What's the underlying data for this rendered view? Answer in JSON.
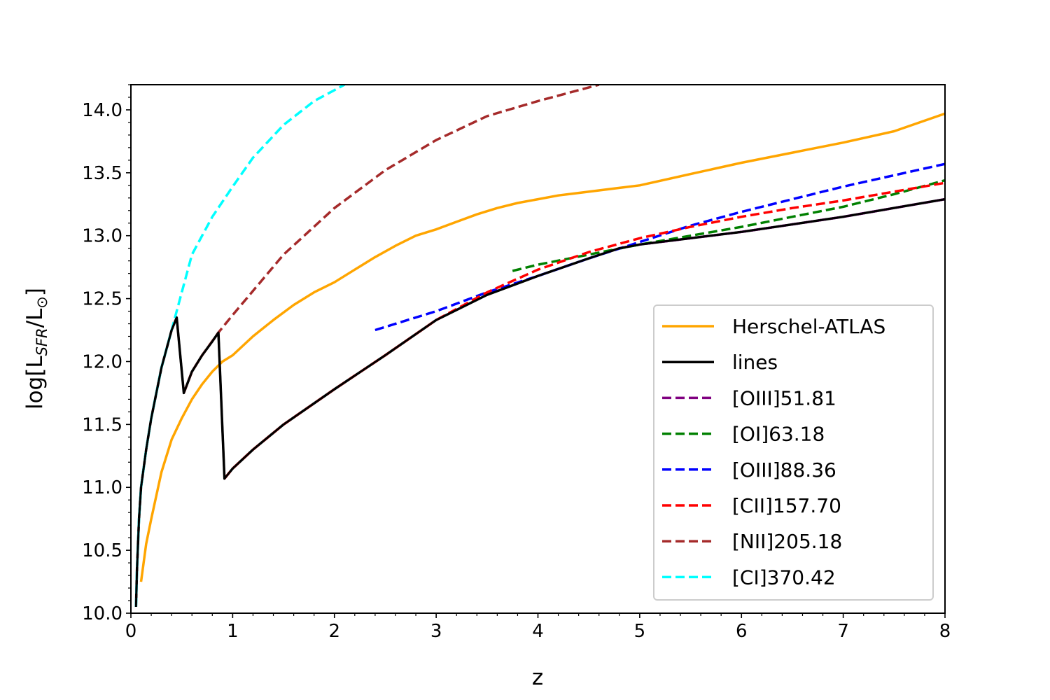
{
  "chart_data": {
    "type": "line",
    "xlabel": "z",
    "ylabel": {
      "prefix": "log[L",
      "sub": "SFR",
      "mid": "/L",
      "sub2": "⊙",
      "suffix": "]"
    },
    "xlim": [
      0,
      8
    ],
    "ylim": [
      10.0,
      14.2
    ],
    "x_ticks": [
      "0",
      "1",
      "2",
      "3",
      "4",
      "5",
      "6",
      "7",
      "8"
    ],
    "y_ticks": [
      "10.0",
      "10.5",
      "11.0",
      "11.5",
      "12.0",
      "12.5",
      "13.0",
      "13.5",
      "14.0"
    ],
    "grid": false,
    "legend_position": "lower-right",
    "series": [
      {
        "name": "Herschel-ATLAS",
        "color": "#ffa500",
        "style": "solid",
        "x": [
          0.1,
          0.15,
          0.2,
          0.3,
          0.4,
          0.5,
          0.6,
          0.7,
          0.8,
          0.9,
          1.0,
          1.2,
          1.4,
          1.6,
          1.8,
          2.0,
          2.2,
          2.4,
          2.6,
          2.8,
          3.0,
          3.2,
          3.4,
          3.6,
          3.8,
          4.0,
          4.2,
          4.4,
          4.6,
          4.8,
          5.0,
          5.5,
          6.0,
          6.5,
          7.0,
          7.5,
          8.0
        ],
        "y": [
          10.25,
          10.55,
          10.75,
          11.12,
          11.38,
          11.55,
          11.7,
          11.82,
          11.92,
          12.0,
          12.05,
          12.2,
          12.33,
          12.45,
          12.55,
          12.63,
          12.73,
          12.83,
          12.92,
          13.0,
          13.05,
          13.11,
          13.17,
          13.22,
          13.26,
          13.29,
          13.32,
          13.34,
          13.36,
          13.38,
          13.4,
          13.49,
          13.58,
          13.66,
          13.74,
          13.83,
          13.97
        ]
      },
      {
        "name": "lines",
        "color": "#000000",
        "style": "solid",
        "x": [
          0.05,
          0.06,
          0.08,
          0.1,
          0.15,
          0.2,
          0.3,
          0.4,
          0.45,
          0.52,
          0.6,
          0.7,
          0.8,
          0.86,
          0.92,
          1.0,
          1.2,
          1.5,
          2.0,
          2.5,
          3.0,
          3.5,
          4.0,
          4.5,
          4.8,
          5.0,
          6.0,
          7.0,
          8.0
        ],
        "y": [
          10.05,
          10.35,
          10.75,
          11.0,
          11.3,
          11.55,
          11.95,
          12.25,
          12.35,
          11.75,
          11.92,
          12.05,
          12.16,
          12.23,
          11.07,
          11.15,
          11.3,
          11.5,
          11.78,
          12.05,
          12.33,
          12.53,
          12.68,
          12.82,
          12.9,
          12.93,
          13.03,
          13.15,
          13.29
        ]
      },
      {
        "name": "[OIII]51.81",
        "color": "#800080",
        "style": "dashed",
        "x": [
          4.8,
          5.0,
          6.0,
          7.0,
          8.0
        ],
        "y": [
          12.9,
          12.93,
          13.03,
          13.15,
          13.29
        ]
      },
      {
        "name": "[OI]63.18",
        "color": "#008000",
        "style": "dashed",
        "x": [
          3.75,
          4.0,
          4.5,
          5.0,
          5.5,
          6.0,
          6.5,
          7.0,
          7.5,
          8.0
        ],
        "y": [
          12.72,
          12.77,
          12.85,
          12.93,
          13.0,
          13.07,
          13.15,
          13.23,
          13.33,
          13.44
        ]
      },
      {
        "name": "[OIII]88.36",
        "color": "#0000ff",
        "style": "dashed",
        "x": [
          2.4,
          3.0,
          3.5,
          4.0,
          4.5,
          5.0,
          5.5,
          6.0,
          6.5,
          7.0,
          7.5,
          8.0
        ],
        "y": [
          12.25,
          12.4,
          12.55,
          12.68,
          12.82,
          12.95,
          13.08,
          13.19,
          13.29,
          13.39,
          13.48,
          13.57
        ]
      },
      {
        "name": "[CII]157.70",
        "color": "#ff0000",
        "style": "dashed",
        "x": [
          0.92,
          1.0,
          1.2,
          1.5,
          2.0,
          2.5,
          3.0,
          3.5,
          4.0,
          4.5,
          5.0,
          5.5,
          6.0,
          6.5,
          7.0,
          7.5,
          8.0
        ],
        "y": [
          11.07,
          11.15,
          11.3,
          11.5,
          11.78,
          12.05,
          12.33,
          12.55,
          12.73,
          12.87,
          12.98,
          13.07,
          13.15,
          13.22,
          13.28,
          13.35,
          13.42
        ]
      },
      {
        "name": "[NII]205.18",
        "color": "#a52a2a",
        "style": "dashed",
        "x": [
          0.52,
          0.6,
          0.7,
          0.86,
          1.0,
          1.5,
          2.0,
          2.5,
          3.0,
          3.5,
          4.0,
          4.6
        ],
        "y": [
          11.75,
          11.92,
          12.05,
          12.23,
          12.37,
          12.85,
          13.22,
          13.52,
          13.76,
          13.95,
          14.07,
          14.2
        ]
      },
      {
        "name": "[CI]370.42",
        "color": "#00ffff",
        "style": "dashed",
        "x": [
          0.05,
          0.06,
          0.08,
          0.1,
          0.15,
          0.2,
          0.3,
          0.45,
          0.6,
          0.8,
          1.0,
          1.2,
          1.5,
          1.8,
          2.1
        ],
        "y": [
          10.05,
          10.35,
          10.75,
          11.0,
          11.3,
          11.55,
          11.95,
          12.4,
          12.85,
          13.15,
          13.39,
          13.62,
          13.88,
          14.07,
          14.2
        ]
      }
    ]
  }
}
